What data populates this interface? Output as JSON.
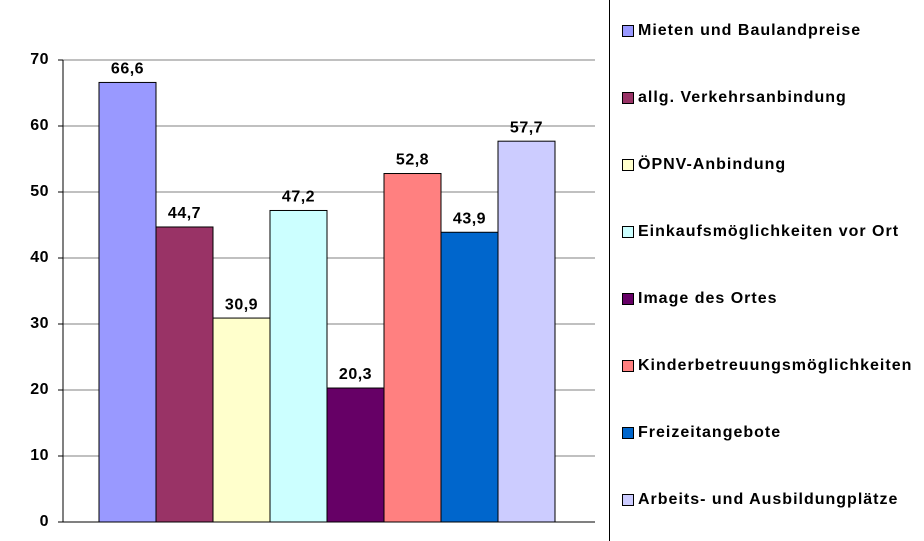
{
  "chart_data": {
    "type": "bar",
    "categories": [
      null
    ],
    "series": [
      {
        "name": "Mieten und Baulandpreise",
        "color": "#9999ff",
        "values": [
          66.6
        ],
        "value_labels": [
          "66,6"
        ]
      },
      {
        "name": "allg. Verkehrsanbindung",
        "color": "#993366",
        "values": [
          44.7
        ],
        "value_labels": [
          "44,7"
        ]
      },
      {
        "name": "ÖPNV-Anbindung",
        "color": "#ffffcc",
        "values": [
          30.9
        ],
        "value_labels": [
          "30,9"
        ]
      },
      {
        "name": "Einkaufsmöglichkeiten vor Ort",
        "color": "#ccffff",
        "values": [
          47.2
        ],
        "value_labels": [
          "47,2"
        ]
      },
      {
        "name": "Image des Ortes",
        "color": "#660066",
        "values": [
          20.3
        ],
        "value_labels": [
          "20,3"
        ]
      },
      {
        "name": "Kinderbetreuungsmöglichkeiten",
        "color": "#ff8080",
        "values": [
          52.8
        ],
        "value_labels": [
          "52,8"
        ]
      },
      {
        "name": "Freizeitangebote",
        "color": "#0066cc",
        "values": [
          43.9
        ],
        "value_labels": [
          "43,9"
        ]
      },
      {
        "name": "Arbeits- und Ausbildungplätze",
        "color": "#ccccff",
        "values": [
          57.7
        ],
        "value_labels": [
          "57,7"
        ]
      }
    ],
    "ylim": [
      0,
      70
    ],
    "yticks": [
      0,
      10,
      20,
      30,
      40,
      50,
      60,
      70
    ],
    "grid": true,
    "legend": "right"
  }
}
